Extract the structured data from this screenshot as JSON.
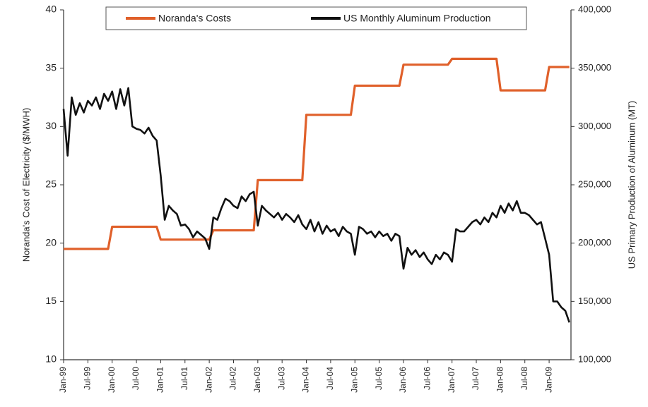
{
  "chart_data": {
    "type": "line",
    "y_label": "Noranda's Cost of Electricity ($/MWH)",
    "y2_label": "US Primary Production of Aluminum (MT)",
    "ylim": [
      10,
      40
    ],
    "yticks": [
      10,
      15,
      20,
      25,
      30,
      35,
      40
    ],
    "y2lim": [
      100000,
      400000
    ],
    "y2ticks": [
      {
        "value": 100000,
        "label": "100,000"
      },
      {
        "value": 150000,
        "label": "150,000"
      },
      {
        "value": 200000,
        "label": "200,000"
      },
      {
        "value": 250000,
        "label": "250,000"
      },
      {
        "value": 300000,
        "label": "300,000"
      },
      {
        "value": 350000,
        "label": "350,000"
      },
      {
        "value": 400000,
        "label": "400,000"
      }
    ],
    "legend": "top",
    "categories": [
      "Jan-99",
      null,
      null,
      null,
      null,
      null,
      "Jul-99",
      null,
      null,
      null,
      null,
      null,
      "Jan-00",
      null,
      null,
      null,
      null,
      null,
      "Jul-00",
      null,
      null,
      null,
      null,
      null,
      "Jan-01",
      null,
      null,
      null,
      null,
      null,
      "Jul-01",
      null,
      null,
      null,
      null,
      null,
      "Jan-02",
      null,
      null,
      null,
      null,
      null,
      "Jul-02",
      null,
      null,
      null,
      null,
      null,
      "Jan-03",
      null,
      null,
      null,
      null,
      null,
      "Jul-03",
      null,
      null,
      null,
      null,
      null,
      "Jan-04",
      null,
      null,
      null,
      null,
      null,
      "Jul-04",
      null,
      null,
      null,
      null,
      null,
      "Jan-05",
      null,
      null,
      null,
      null,
      null,
      "Jul-05",
      null,
      null,
      null,
      null,
      null,
      "Jan-06",
      null,
      null,
      null,
      null,
      null,
      "Jul-06",
      null,
      null,
      null,
      null,
      null,
      "Jan-07",
      null,
      null,
      null,
      null,
      null,
      "Jul-07",
      null,
      null,
      null,
      null,
      null,
      "Jan-08",
      null,
      null,
      null,
      null,
      null,
      "Jul-08",
      null,
      null,
      null,
      null,
      null,
      "Jan-09",
      null,
      null,
      null,
      null,
      null
    ],
    "series": [
      {
        "name": "Noranda's Costs",
        "color": "#e0602a",
        "values": [
          19.5,
          19.5,
          19.5,
          19.5,
          19.5,
          19.5,
          19.5,
          19.5,
          19.5,
          19.5,
          19.5,
          19.5,
          21.4,
          21.4,
          21.4,
          21.4,
          21.4,
          21.4,
          21.4,
          21.4,
          21.4,
          21.4,
          21.4,
          21.4,
          20.3,
          20.3,
          20.3,
          20.3,
          20.3,
          20.3,
          20.3,
          20.3,
          20.3,
          20.3,
          20.3,
          20.3,
          20.3,
          21.1,
          21.1,
          21.1,
          21.1,
          21.1,
          21.1,
          21.1,
          21.1,
          21.1,
          21.1,
          21.1,
          25.4,
          25.4,
          25.4,
          25.4,
          25.4,
          25.4,
          25.4,
          25.4,
          25.4,
          25.4,
          25.4,
          25.4,
          31.0,
          31.0,
          31.0,
          31.0,
          31.0,
          31.0,
          31.0,
          31.0,
          31.0,
          31.0,
          31.0,
          31.0,
          33.5,
          33.5,
          33.5,
          33.5,
          33.5,
          33.5,
          33.5,
          33.5,
          33.5,
          33.5,
          33.5,
          33.5,
          35.3,
          35.3,
          35.3,
          35.3,
          35.3,
          35.3,
          35.3,
          35.3,
          35.3,
          35.3,
          35.3,
          35.3,
          35.8,
          35.8,
          35.8,
          35.8,
          35.8,
          35.8,
          35.8,
          35.8,
          35.8,
          35.8,
          35.8,
          35.8,
          33.1,
          33.1,
          33.1,
          33.1,
          33.1,
          33.1,
          33.1,
          33.1,
          33.1,
          33.1,
          33.1,
          33.1,
          35.1,
          35.1,
          35.1,
          35.1,
          35.1,
          35.1
        ]
      },
      {
        "name": "US Monthly Aluminum Production",
        "color": "#111111",
        "axis": "y2",
        "values": [
          315000,
          275000,
          325000,
          310000,
          320000,
          312000,
          322000,
          318000,
          325000,
          315000,
          328000,
          322000,
          330000,
          315000,
          332000,
          318000,
          333000,
          300000,
          298000,
          297000,
          294000,
          299000,
          292000,
          288000,
          258000,
          220000,
          232000,
          228000,
          225000,
          215000,
          216000,
          212000,
          205000,
          210000,
          207000,
          204000,
          195000,
          222000,
          220000,
          230000,
          238000,
          236000,
          232000,
          230000,
          240000,
          236000,
          242000,
          244000,
          215000,
          232000,
          228000,
          225000,
          222000,
          226000,
          220000,
          225000,
          222000,
          218000,
          224000,
          216000,
          212000,
          220000,
          210000,
          218000,
          208000,
          215000,
          210000,
          212000,
          206000,
          214000,
          210000,
          208000,
          190000,
          214000,
          212000,
          208000,
          210000,
          205000,
          210000,
          206000,
          208000,
          202000,
          208000,
          206000,
          178000,
          196000,
          190000,
          194000,
          188000,
          192000,
          186000,
          182000,
          190000,
          186000,
          192000,
          190000,
          184000,
          212000,
          210000,
          210000,
          214000,
          218000,
          220000,
          216000,
          222000,
          218000,
          226000,
          222000,
          232000,
          226000,
          234000,
          228000,
          236000,
          226000,
          226000,
          224000,
          220000,
          216000,
          218000,
          204000,
          190000,
          150000,
          150000,
          145000,
          142000,
          132000
        ]
      }
    ]
  }
}
